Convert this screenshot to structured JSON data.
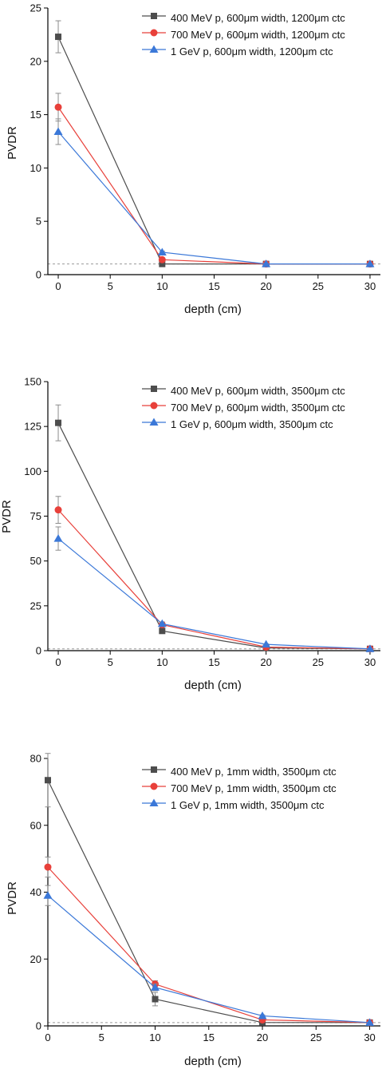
{
  "colors": {
    "series_0": "#4d4d4d",
    "series_1": "#e8403a",
    "series_2": "#3b78d8",
    "error_bar": "#8c8c8c",
    "reference_line": "#9a9a9a"
  },
  "chart_data": [
    {
      "type": "line",
      "xlabel": "depth (cm)",
      "ylabel": "PVDR",
      "xlim": [
        -1,
        31
      ],
      "ylim": [
        0,
        25
      ],
      "xticks": [
        0,
        5,
        10,
        15,
        20,
        25,
        30
      ],
      "yticks": [
        0,
        5,
        10,
        15,
        20,
        25
      ],
      "reference_line_y": 1,
      "legend_position": "top-right",
      "grid": false,
      "x": [
        0,
        10,
        20,
        30
      ],
      "series": [
        {
          "name": "400 MeV p, 600μm width, 1200μm ctc",
          "marker": "square",
          "values": [
            22.3,
            1.0,
            1.0,
            1.0
          ],
          "errors": [
            1.5,
            0.1,
            0.05,
            0.05
          ]
        },
        {
          "name": "700 MeV p, 600μm width, 1200μm ctc",
          "marker": "circle",
          "values": [
            15.7,
            1.4,
            1.0,
            1.0
          ],
          "errors": [
            1.3,
            0.1,
            0.05,
            0.05
          ]
        },
        {
          "name": "1 GeV p, 600μm width, 1200μm ctc",
          "marker": "triangle",
          "values": [
            13.4,
            2.1,
            1.0,
            1.0
          ],
          "errors": [
            1.2,
            0.1,
            0.05,
            0.05
          ]
        }
      ]
    },
    {
      "type": "line",
      "xlabel": "depth (cm)",
      "ylabel": "PVDR",
      "xlim": [
        -1,
        31
      ],
      "ylim": [
        0,
        150
      ],
      "xticks": [
        0,
        5,
        10,
        15,
        20,
        25,
        30
      ],
      "yticks": [
        0,
        25,
        50,
        75,
        100,
        125,
        150
      ],
      "reference_line_y": 1,
      "legend_position": "top-right",
      "grid": false,
      "x": [
        0,
        10,
        20,
        30
      ],
      "series": [
        {
          "name": "400 MeV p, 600μm width, 3500μm ctc",
          "marker": "square",
          "values": [
            127,
            11,
            1.5,
            1.0
          ],
          "errors": [
            10,
            1,
            0.3,
            0.1
          ]
        },
        {
          "name": "700 MeV p, 600μm width, 3500μm ctc",
          "marker": "circle",
          "values": [
            78.5,
            14.5,
            2.0,
            1.0
          ],
          "errors": [
            7.5,
            1,
            0.3,
            0.1
          ]
        },
        {
          "name": "1 GeV p, 600μm width, 3500μm ctc",
          "marker": "triangle",
          "values": [
            62.5,
            15,
            3.5,
            1.0
          ],
          "errors": [
            6.5,
            1,
            0.3,
            0.1
          ]
        }
      ]
    },
    {
      "type": "line",
      "xlabel": "depth (cm)",
      "ylabel": "PVDR",
      "xlim": [
        0,
        31
      ],
      "ylim": [
        0,
        80
      ],
      "xticks": [
        0,
        5,
        10,
        15,
        20,
        25,
        30
      ],
      "yticks": [
        0,
        20,
        40,
        60,
        80
      ],
      "reference_line_y": 1,
      "legend_position": "top-right",
      "grid": false,
      "x": [
        0,
        10,
        20,
        30
      ],
      "series": [
        {
          "name": "400 MeV p, 1mm width, 3500μm ctc",
          "marker": "square",
          "values": [
            73.5,
            8,
            1.0,
            1.0
          ],
          "errors": [
            8,
            2,
            0.3,
            0.1
          ]
        },
        {
          "name": "700 MeV p, 1mm width, 3500μm ctc",
          "marker": "circle",
          "values": [
            47.5,
            12.5,
            1.8,
            1.0
          ],
          "errors": [
            3,
            1,
            0.3,
            0.1
          ]
        },
        {
          "name": "1 GeV p, 1mm width, 3500μm ctc",
          "marker": "triangle",
          "values": [
            39,
            11.5,
            3.0,
            1.0
          ],
          "errors": [
            3,
            1,
            0.3,
            0.1
          ]
        }
      ]
    }
  ]
}
